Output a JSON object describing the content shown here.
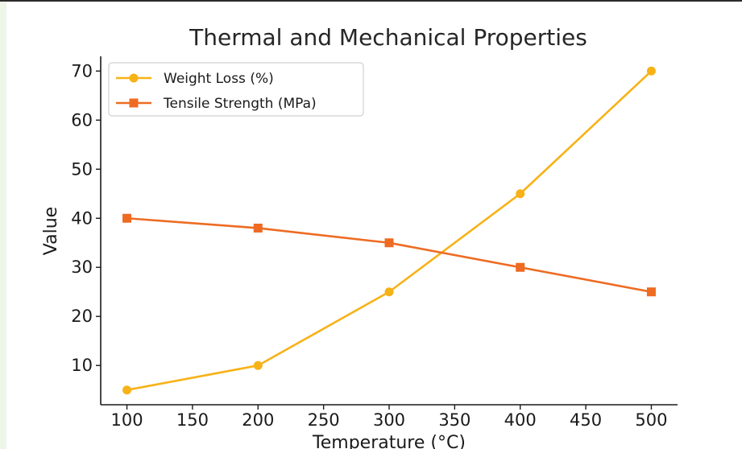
{
  "chart_data": {
    "type": "line",
    "title": "Thermal and Mechanical Properties",
    "xlabel": "Temperature (°C)",
    "ylabel": "Value",
    "x": [
      100,
      200,
      300,
      400,
      500
    ],
    "xlim": [
      80,
      520
    ],
    "ylim": [
      2,
      73
    ],
    "xticks": [
      100,
      150,
      200,
      250,
      300,
      350,
      400,
      450,
      500
    ],
    "yticks": [
      10,
      20,
      30,
      40,
      50,
      60,
      70
    ],
    "grid": false,
    "legend_position": "top-left",
    "series": [
      {
        "name": "Weight Loss (%)",
        "values": [
          5,
          10,
          25,
          45,
          70
        ],
        "color": "#f7b217",
        "marker": "circle"
      },
      {
        "name": "Tensile Strength (MPa)",
        "values": [
          40,
          38,
          35,
          30,
          25
        ],
        "color": "#ee6b22",
        "marker": "square"
      }
    ]
  }
}
